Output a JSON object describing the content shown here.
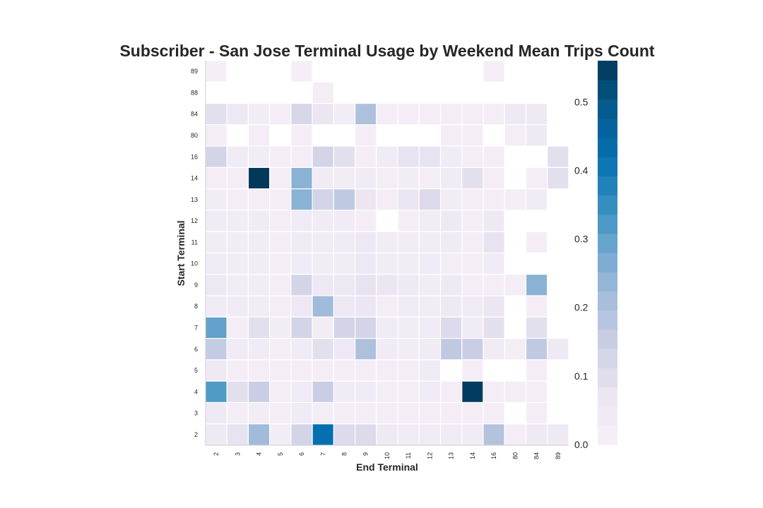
{
  "chart_data": {
    "type": "heatmap",
    "title": "Subscriber - San Jose Terminal Usage by Weekend Mean Trips Count",
    "xlabel": "End Terminal",
    "ylabel": "Start Terminal",
    "x_categories": [
      "2",
      "3",
      "4",
      "5",
      "6",
      "7",
      "8",
      "9",
      "10",
      "11",
      "12",
      "13",
      "14",
      "16",
      "80",
      "84",
      "89"
    ],
    "y_categories": [
      "89",
      "88",
      "84",
      "80",
      "16",
      "14",
      "13",
      "12",
      "11",
      "10",
      "9",
      "8",
      "7",
      "6",
      "5",
      "4",
      "3",
      "2"
    ],
    "values": [
      [
        0.015,
        null,
        null,
        null,
        0.015,
        null,
        null,
        null,
        null,
        null,
        null,
        null,
        null,
        0.015,
        null,
        null,
        null
      ],
      [
        null,
        null,
        null,
        null,
        null,
        0.02,
        null,
        null,
        null,
        null,
        null,
        null,
        null,
        null,
        null,
        null,
        null
      ],
      [
        0.09,
        0.06,
        0.03,
        0.02,
        0.12,
        0.07,
        0.03,
        0.2,
        0.02,
        0.02,
        0.02,
        0.02,
        0.02,
        0.02,
        0.06,
        0.05,
        null
      ],
      [
        0.02,
        null,
        0.02,
        null,
        0.02,
        null,
        null,
        0.02,
        null,
        null,
        null,
        0.02,
        0.02,
        null,
        0.02,
        0.05,
        null
      ],
      [
        0.13,
        0.04,
        0.03,
        0.02,
        0.02,
        0.13,
        0.09,
        0.02,
        0.04,
        0.08,
        0.08,
        0.04,
        0.02,
        0.02,
        null,
        null,
        0.09
      ],
      [
        0.02,
        0.02,
        0.56,
        0.02,
        0.25,
        0.04,
        0.03,
        0.04,
        0.02,
        0.03,
        0.02,
        0.04,
        0.09,
        0.02,
        null,
        0.02,
        0.09
      ],
      [
        0.03,
        0.02,
        0.02,
        0.02,
        0.25,
        0.13,
        0.17,
        0.07,
        0.02,
        0.07,
        0.11,
        0.03,
        0.02,
        0.02,
        0.02,
        0.04,
        null
      ],
      [
        0.04,
        0.03,
        0.04,
        0.02,
        0.04,
        0.04,
        0.04,
        0.02,
        null,
        0.02,
        0.03,
        0.05,
        0.02,
        0.05,
        null,
        null,
        null
      ],
      [
        0.03,
        0.03,
        0.03,
        0.02,
        0.04,
        0.03,
        0.04,
        0.06,
        0.03,
        0.03,
        0.03,
        0.04,
        0.02,
        0.08,
        null,
        0.02,
        null
      ],
      [
        0.04,
        0.03,
        0.03,
        0.02,
        0.04,
        0.03,
        0.03,
        0.06,
        0.03,
        0.03,
        0.04,
        0.02,
        0.02,
        0.04,
        null,
        null,
        null
      ],
      [
        0.06,
        0.03,
        0.03,
        0.02,
        0.13,
        0.06,
        0.06,
        0.08,
        0.07,
        0.05,
        0.03,
        0.05,
        0.02,
        0.02,
        0.02,
        0.25,
        null
      ],
      [
        0.04,
        0.04,
        0.03,
        0.02,
        0.06,
        0.22,
        0.06,
        0.07,
        0.02,
        0.04,
        0.03,
        0.05,
        0.04,
        0.07,
        null,
        0.02,
        null
      ],
      [
        0.3,
        0.02,
        0.09,
        0.03,
        0.13,
        0.03,
        0.13,
        0.13,
        0.04,
        0.03,
        0.04,
        0.11,
        0.04,
        0.09,
        null,
        0.09,
        null
      ],
      [
        0.16,
        0.04,
        0.04,
        0.02,
        0.04,
        0.09,
        0.06,
        0.2,
        0.04,
        0.03,
        0.04,
        0.17,
        0.15,
        0.04,
        0.02,
        0.17,
        0.05
      ],
      [
        0.05,
        0.02,
        0.02,
        0.02,
        0.02,
        0.02,
        0.02,
        0.02,
        0.02,
        0.02,
        0.04,
        null,
        0.02,
        null,
        null,
        0.02,
        null
      ],
      [
        0.32,
        0.09,
        0.15,
        0.02,
        0.04,
        0.15,
        0.04,
        0.04,
        0.02,
        0.02,
        0.04,
        0.02,
        0.55,
        0.02,
        0.02,
        0.02,
        null
      ],
      [
        0.05,
        0.02,
        0.03,
        0.02,
        0.04,
        0.02,
        0.02,
        0.02,
        0.02,
        0.02,
        0.02,
        0.02,
        0.02,
        0.02,
        null,
        0.02,
        null
      ],
      [
        0.05,
        0.08,
        0.22,
        0.03,
        0.13,
        0.42,
        0.11,
        0.11,
        0.05,
        0.04,
        0.04,
        0.04,
        0.04,
        0.19,
        0.02,
        0.05,
        0.05
      ]
    ],
    "colorbar": {
      "min": 0.0,
      "max": 0.56,
      "ticks": [
        "0.0",
        "0.1",
        "0.2",
        "0.3",
        "0.4",
        "0.5"
      ],
      "palette": "PuBu"
    },
    "grid": false,
    "colors": {
      "text": "#262626",
      "axis": "#cccccc",
      "cell_border": "#ffffff"
    }
  }
}
